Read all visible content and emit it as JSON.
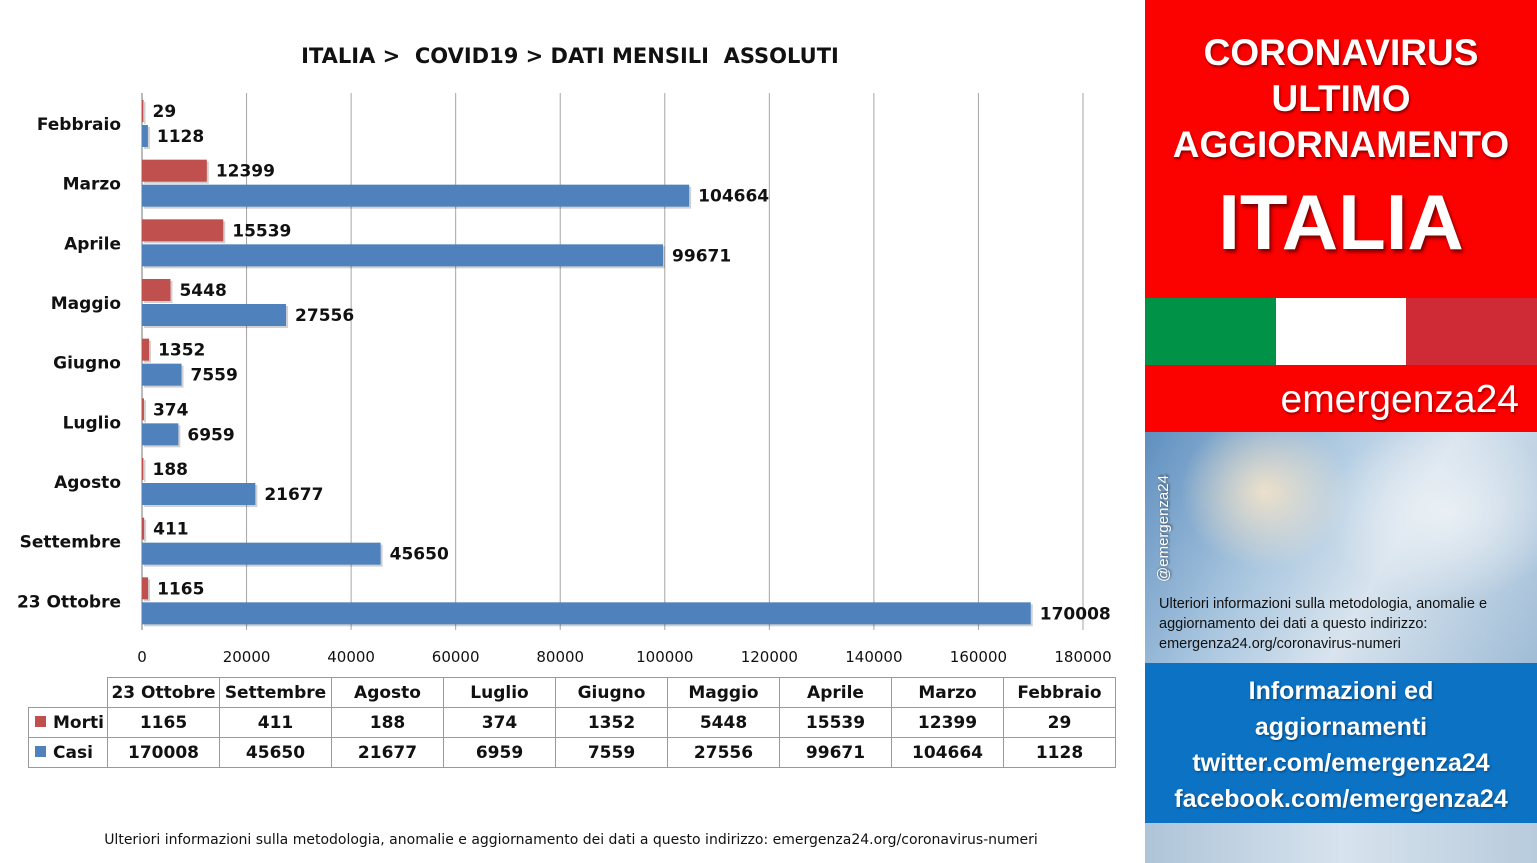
{
  "chart_data": {
    "type": "bar",
    "orientation": "horizontal",
    "title": "ITALIA >  COVID19 > DATI MENSILI  ASSOLUTI",
    "categories": [
      "Febbraio",
      "Marzo",
      "Aprile",
      "Maggio",
      "Giugno",
      "Luglio",
      "Agosto",
      "Settembre",
      "23 Ottobre"
    ],
    "series": [
      {
        "name": "Morti",
        "color": "#c0504d",
        "values": [
          29,
          12399,
          15539,
          5448,
          1352,
          374,
          188,
          411,
          1165
        ]
      },
      {
        "name": "Casi",
        "color": "#4f81bd",
        "values": [
          1128,
          104664,
          99671,
          27556,
          7559,
          6959,
          21677,
          45650,
          170008
        ]
      }
    ],
    "xlim": [
      0,
      180000
    ],
    "x_ticks": [
      0,
      20000,
      40000,
      60000,
      80000,
      100000,
      120000,
      140000,
      160000,
      180000
    ],
    "grid": true,
    "data_labels": true
  },
  "table": {
    "columns": [
      "23 Ottobre",
      "Settembre",
      "Agosto",
      "Luglio",
      "Giugno",
      "Maggio",
      "Aprile",
      "Marzo",
      "Febbraio"
    ],
    "rows": [
      {
        "label": "Morti",
        "color": "#c0504d",
        "values": [
          "1165",
          "411",
          "188",
          "374",
          "1352",
          "5448",
          "15539",
          "12399",
          "29"
        ]
      },
      {
        "label": "Casi",
        "color": "#4f81bd",
        "values": [
          "170008",
          "45650",
          "21677",
          "6959",
          "7559",
          "27556",
          "99671",
          "104664",
          "1128"
        ]
      }
    ]
  },
  "footnote": "Ulteriori informazioni sulla metodologia, anomalie e aggiornamento dei dati a questo indirizzo: emergenza24.org/coronavirus-numeri",
  "side_panel": {
    "headline_lines": [
      "CORONAVIRUS",
      "ULTIMO",
      "AGGIORNAMENTO"
    ],
    "country": "ITALIA",
    "flag_colors": [
      "#009246",
      "#ffffff",
      "#ce2b37"
    ],
    "brand": "emergenza24",
    "handle": "@emergenza24",
    "note": "Ulteriori informazioni sulla metodologia, anomalie e aggiornamento dei dati a questo indirizzo: emergenza24.org/coronavirus-numeri",
    "info_lines": [
      "Informazioni ed",
      "aggiornamenti",
      "twitter.com/emergenza24",
      "facebook.com/emergenza24"
    ]
  }
}
